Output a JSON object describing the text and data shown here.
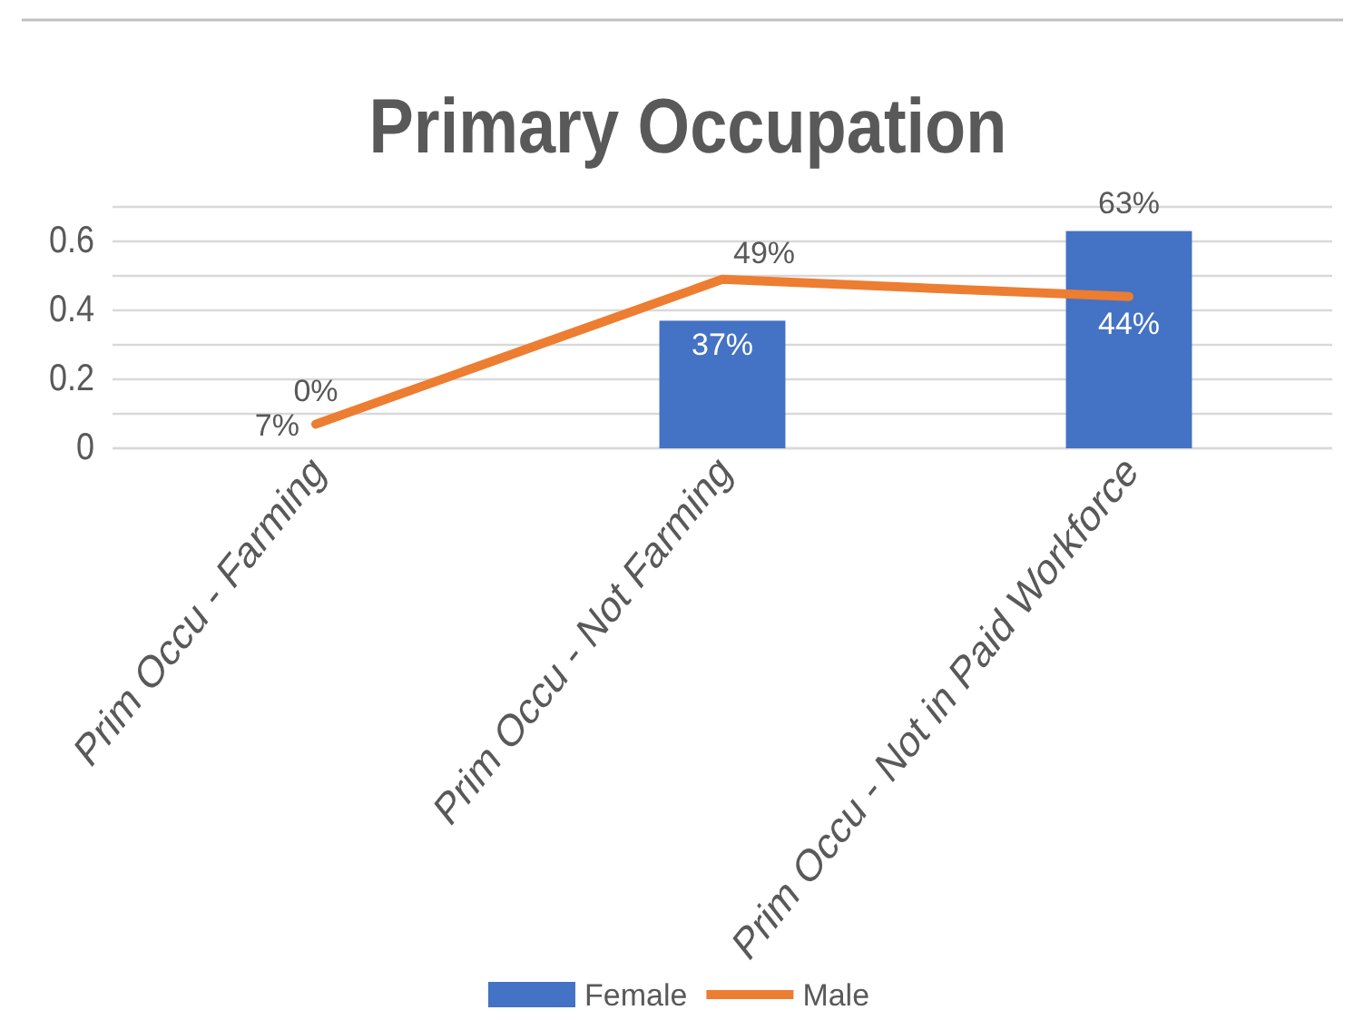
{
  "chart_data": {
    "type": "bar",
    "title": "Primary Occupation",
    "categories": [
      "Prim Occu - Farming",
      "Prim Occu - Not Farming",
      "Prim Occu - Not in Paid Workforce"
    ],
    "series": [
      {
        "name": "Female",
        "color": "#4472c4",
        "values": [
          0,
          0.37,
          0.63
        ],
        "value_labels": [
          "0%",
          "37%",
          "63%"
        ]
      },
      {
        "name": "Male",
        "type": "line",
        "color": "#ed7d31",
        "values": [
          0.07,
          0.49,
          0.44
        ],
        "value_labels": [
          "7%",
          "49%",
          "44%"
        ]
      }
    ],
    "ylim": [
      0,
      0.7
    ],
    "yticks": [
      0,
      {
        "value": 0.1,
        "label": null
      },
      0.2,
      {
        "value": 0.3,
        "label": null
      },
      0.4,
      {
        "value": 0.5,
        "label": null
      },
      0.6,
      {
        "value": 0.7,
        "label": null
      }
    ],
    "grid": "y",
    "legend": "bottom"
  }
}
